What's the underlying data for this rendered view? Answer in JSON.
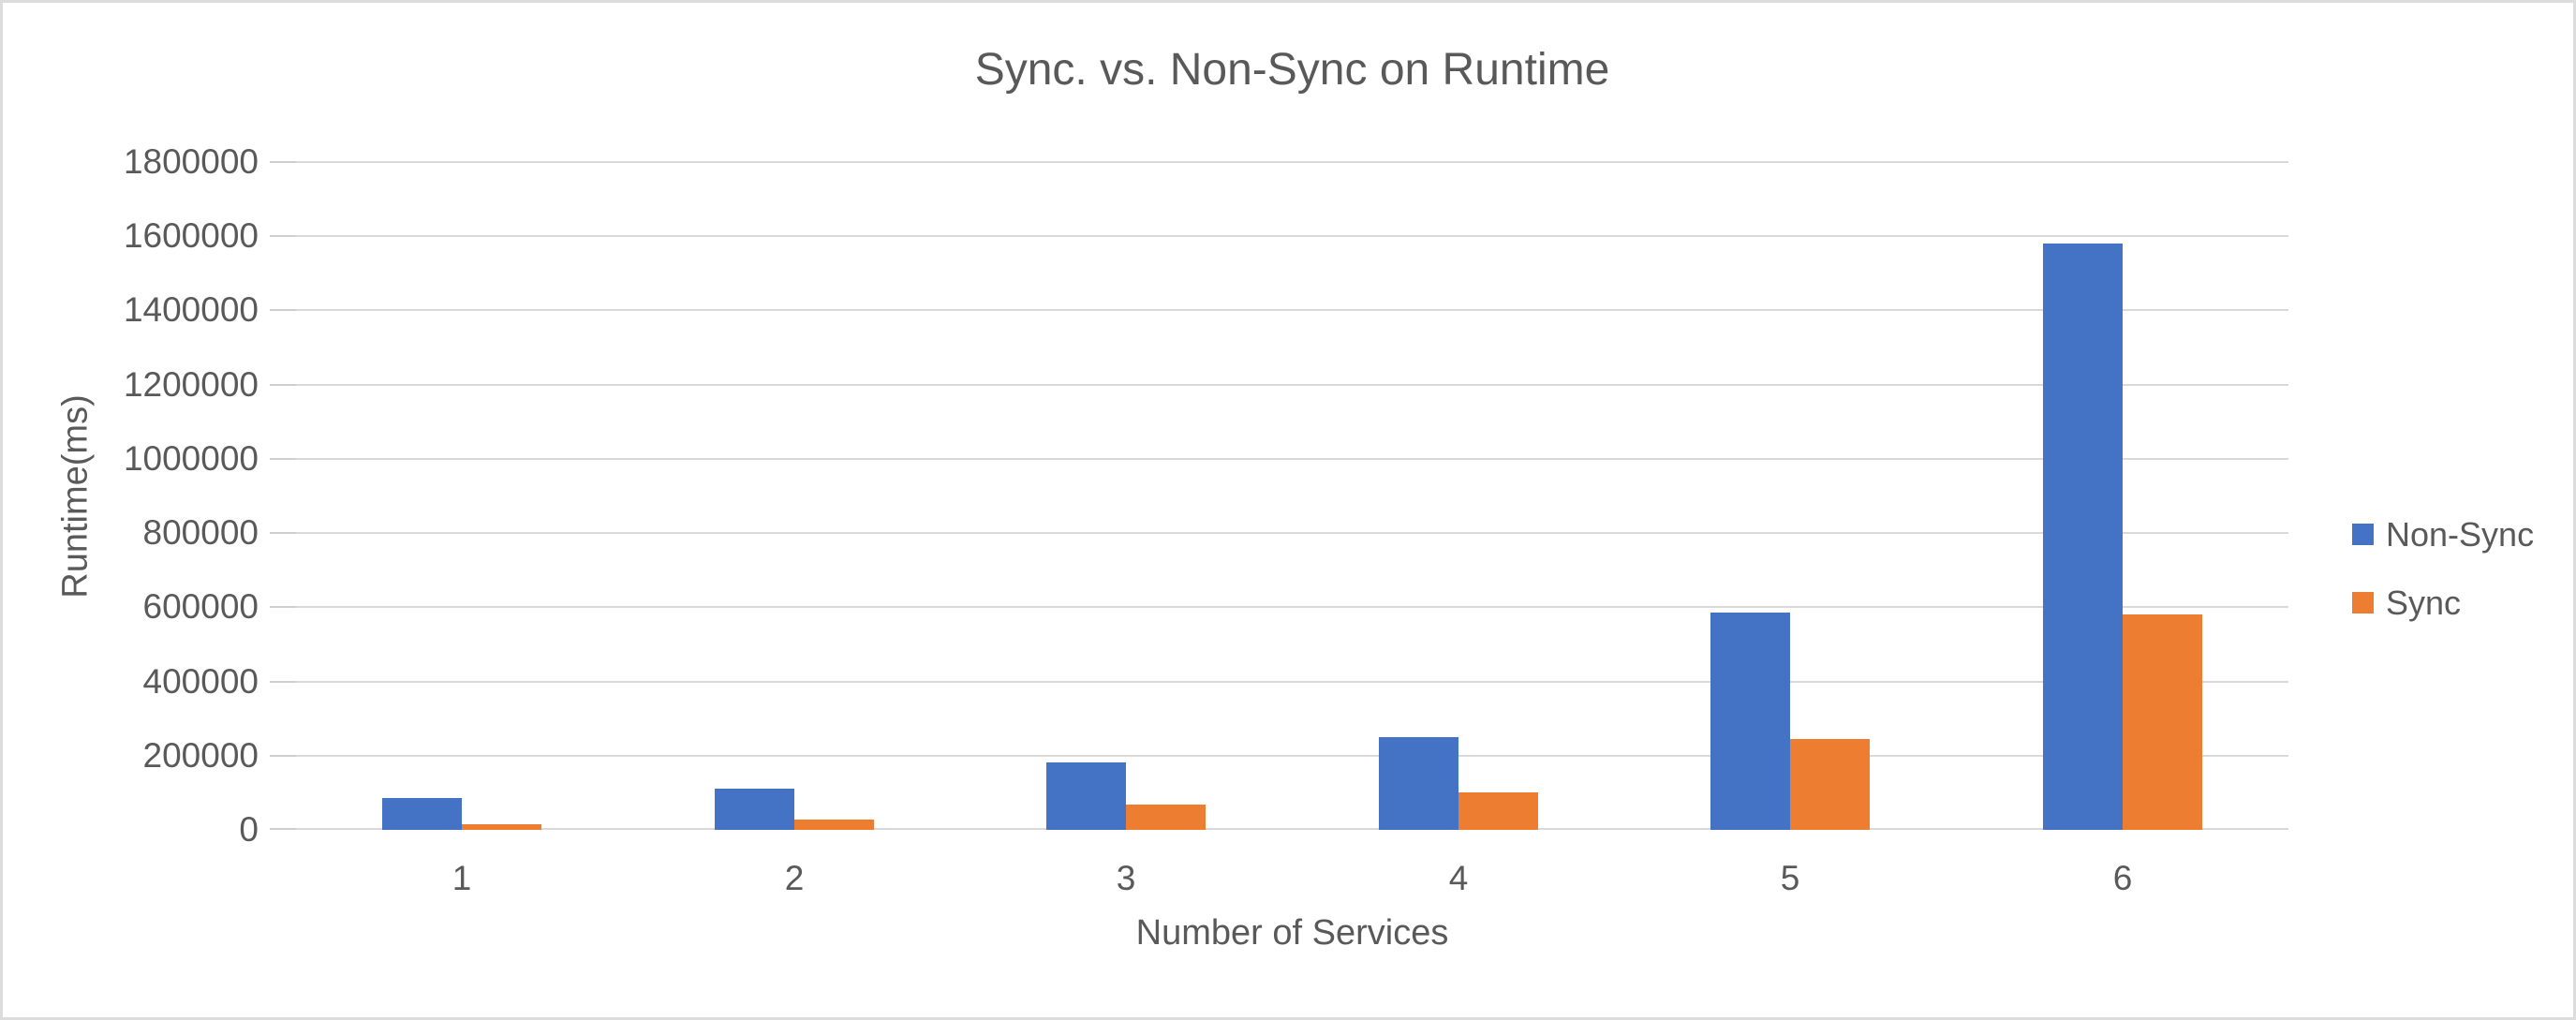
{
  "window": {
    "background": "#ffffff",
    "border_color": "#dcdcdc",
    "text_color": "#595959"
  },
  "chart_data": {
    "type": "bar",
    "title": "Sync. vs. Non-Sync on Runtime",
    "xlabel": "Number of Services",
    "ylabel": "Runtime(ms)",
    "categories": [
      "1",
      "2",
      "3",
      "4",
      "5",
      "6"
    ],
    "series": [
      {
        "name": "Non-Sync",
        "color": "#4472C4",
        "values": [
          85000,
          112000,
          181000,
          250000,
          586000,
          1580000
        ]
      },
      {
        "name": "Sync",
        "color": "#ED7D31",
        "values": [
          14000,
          29000,
          68000,
          102000,
          244000,
          581000
        ]
      }
    ],
    "ylim": [
      0,
      1800000
    ],
    "ytick_step": 200000,
    "ytick_labels": [
      "0",
      "200000",
      "400000",
      "600000",
      "800000",
      "1000000",
      "1200000",
      "1400000",
      "1600000",
      "1800000"
    ],
    "grid": true,
    "gridline_color": "#d9d9d9",
    "tick_color": "#cfcfcf",
    "legend_position": "right"
  }
}
